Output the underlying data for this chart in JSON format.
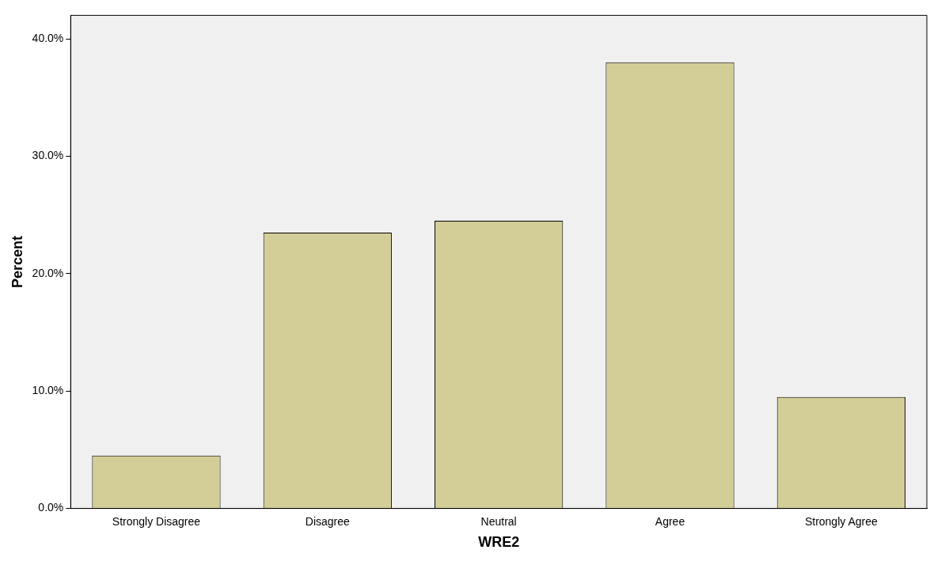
{
  "chart_data": {
    "type": "bar",
    "xlabel": "WRE2",
    "ylabel": "Percent",
    "categories": [
      "Strongly Disagree",
      "Disagree",
      "Neutral",
      "Agree",
      "Strongly Agree"
    ],
    "values": [
      4.5,
      23.5,
      24.5,
      38.0,
      9.5
    ],
    "color": "#d3cd98",
    "ylim": [
      0,
      42
    ],
    "yticks": [
      {
        "value": 0,
        "label": "0.0%"
      },
      {
        "value": 10,
        "label": "10.0%"
      },
      {
        "value": 20,
        "label": "20.0%"
      },
      {
        "value": 30,
        "label": "30.0%"
      },
      {
        "value": 40,
        "label": "40.0%"
      }
    ],
    "grid": false,
    "legend": false
  }
}
